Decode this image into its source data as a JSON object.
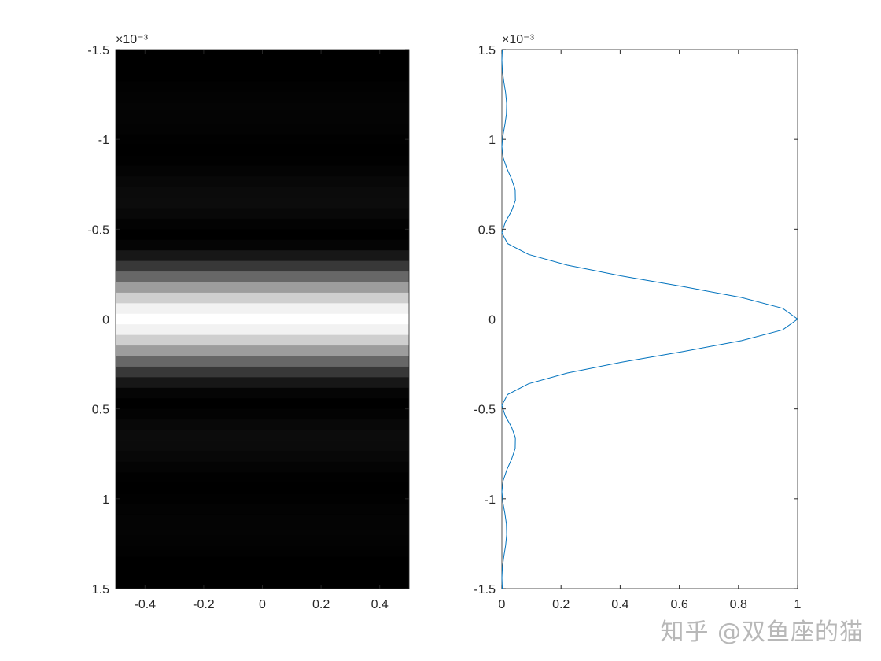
{
  "chart_data": [
    {
      "type": "heatmap",
      "colormap": "gray",
      "x_range": [
        -0.5,
        0.5
      ],
      "y_range": [
        -0.0015,
        0.0015
      ],
      "y_reversed": true,
      "xticks": [
        "-0.4",
        "-0.2",
        "0",
        "0.2",
        "0.4"
      ],
      "xtick_values": [
        -0.4,
        -0.2,
        0,
        0.2,
        0.4
      ],
      "yticks": [
        "-1.5",
        "-1",
        "-0.5",
        "0",
        "0.5",
        "1",
        "1.5"
      ],
      "ytick_values": [
        -1.5,
        -1,
        -0.5,
        0,
        0.5,
        1,
        1.5
      ],
      "y_exponent": "×10⁻³",
      "y_step": 0.06,
      "profile_half": [
        1,
        0.9496,
        0.8106,
        0.6149,
        0.4053,
        0.2214,
        0.0901,
        0.0194,
        0,
        0.0117,
        0.0324,
        0.0457,
        0.045,
        0.0328,
        0.0165,
        0.0042,
        0,
        0.0033,
        0.01,
        0.0153,
        0.0162,
        0.0126,
        0.0067,
        0.0018,
        0,
        0.0015
      ]
    },
    {
      "type": "line",
      "color": "#0072BD",
      "x_range": [
        0,
        1
      ],
      "y_range": [
        -1.5,
        1.5
      ],
      "xticks": [
        "0",
        "0.2",
        "0.4",
        "0.6",
        "0.8",
        "1"
      ],
      "xtick_values": [
        0,
        0.2,
        0.4,
        0.6,
        0.8,
        1
      ],
      "yticks": [
        "1.5",
        "1",
        "0.5",
        "0",
        "-0.5",
        "-1",
        "-1.5"
      ],
      "ytick_values": [
        1.5,
        1,
        0.5,
        0,
        -0.5,
        -1,
        -1.5
      ],
      "y_exponent": "×10⁻³",
      "y_step": 0.06,
      "note_symmetric": true,
      "profile_half": [
        1,
        0.9496,
        0.8106,
        0.6149,
        0.4053,
        0.2214,
        0.0901,
        0.0194,
        0,
        0.0117,
        0.0324,
        0.0457,
        0.045,
        0.0328,
        0.0165,
        0.0042,
        0,
        0.0033,
        0.01,
        0.0153,
        0.0162,
        0.0126,
        0.0067,
        0.0018,
        0,
        0.0015
      ]
    }
  ],
  "watermark": "知乎 @双鱼座的猫"
}
